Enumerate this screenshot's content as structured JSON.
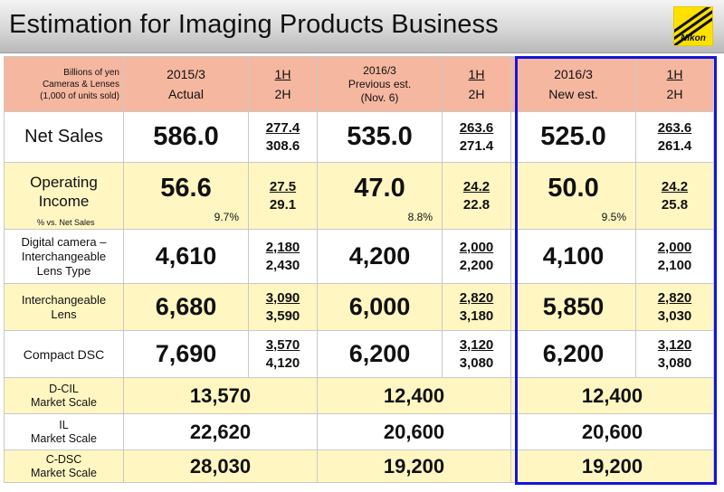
{
  "title": "Estimation for Imaging Products Business",
  "logo_text": "Nikon",
  "header": {
    "unit_lines": [
      "Billions of yen",
      "Cameras & Lenses",
      "(1,000 of units sold)"
    ],
    "col1_lines": [
      "2015/3",
      "Actual"
    ],
    "col2_lines": [
      "2016/3",
      "Previous est.",
      "(Nov. 6)"
    ],
    "col3_lines": [
      "2016/3",
      "New est."
    ],
    "half_top": "1H",
    "half_bottom": "2H"
  },
  "rows": [
    {
      "label": "Net Sales",
      "c1": "586.0",
      "c1h1": "277.4",
      "c1h2": "308.6",
      "c2": "535.0",
      "c2h1": "263.6",
      "c2h2": "271.4",
      "c3": "525.0",
      "c3h1": "263.6",
      "c3h2": "261.4"
    },
    {
      "label_lines": [
        "Operating",
        "Income"
      ],
      "note": "% vs. Net Sales",
      "c1": "56.6",
      "c1pct": "9.7%",
      "c1h1": "27.5",
      "c1h2": "29.1",
      "c2": "47.0",
      "c2pct": "8.8%",
      "c2h1": "24.2",
      "c2h2": "22.8",
      "c3": "50.0",
      "c3pct": "9.5%",
      "c3h1": "24.2",
      "c3h2": "25.8"
    },
    {
      "label_lines": [
        "Digital camera –",
        "Interchangeable",
        "Lens Type"
      ],
      "c1": "4,610",
      "c1h1": "2,180",
      "c1h2": "2,430",
      "c2": "4,200",
      "c2h1": "2,000",
      "c2h2": "2,200",
      "c3": "4,100",
      "c3h1": "2,000",
      "c3h2": "2,100"
    },
    {
      "label_lines": [
        "Interchangeable",
        "Lens"
      ],
      "c1": "6,680",
      "c1h1": "3,090",
      "c1h2": "3,590",
      "c2": "6,000",
      "c2h1": "2,820",
      "c2h2": "3,180",
      "c3": "5,850",
      "c3h1": "2,820",
      "c3h2": "3,030"
    },
    {
      "label": "Compact DSC",
      "c1": "7,690",
      "c1h1": "3,570",
      "c1h2": "4,120",
      "c2": "6,200",
      "c2h1": "3,120",
      "c2h2": "3,080",
      "c3": "6,200",
      "c3h1": "3,120",
      "c3h2": "3,080"
    }
  ],
  "market": [
    {
      "label_lines": [
        "D-CIL",
        "Market Scale"
      ],
      "c1": "13,570",
      "c2": "12,400",
      "c3": "12,400"
    },
    {
      "label_lines": [
        "IL",
        "Market Scale"
      ],
      "c1": "22,620",
      "c2": "20,600",
      "c3": "20,600"
    },
    {
      "label_lines": [
        "C-DSC",
        "Market Scale"
      ],
      "c1": "28,030",
      "c2": "19,200",
      "c3": "19,200"
    }
  ]
}
